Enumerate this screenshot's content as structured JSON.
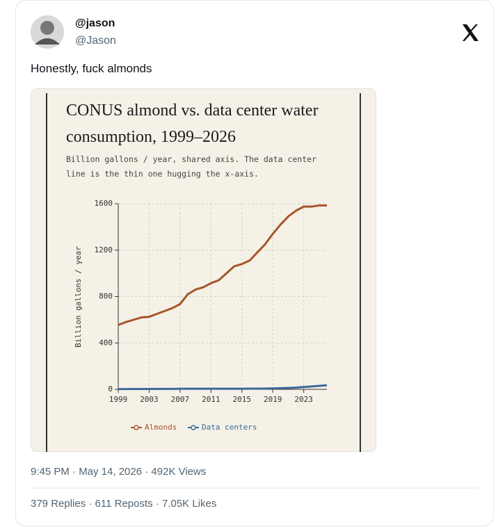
{
  "tweet": {
    "display_name": "@jason",
    "handle": "@Jason",
    "text": "Honestly, fuck almonds",
    "meta": "9:45 PM · May 14, 2026 · 492K Views",
    "stats": "379 Replies · 611 Reposts · 7.05K Likes"
  },
  "chart_data": {
    "type": "line",
    "title": "CONUS almond vs. data center water consumption, 1999–2026",
    "subtitle": "Billion gallons / year, shared axis. The data center line is the thin one hugging the x-axis.",
    "y_label": "Billion gallons / year",
    "x": [
      1999,
      2000,
      2001,
      2002,
      2003,
      2004,
      2005,
      2006,
      2007,
      2008,
      2009,
      2010,
      2011,
      2012,
      2013,
      2014,
      2015,
      2016,
      2017,
      2018,
      2019,
      2020,
      2021,
      2022,
      2023,
      2024,
      2025,
      2026
    ],
    "series": [
      {
        "name": "Almonds",
        "color": "#a5552a",
        "values": [
          555,
          580,
          600,
          620,
          625,
          650,
          675,
          700,
          735,
          820,
          860,
          880,
          915,
          940,
          1000,
          1060,
          1080,
          1110,
          1180,
          1250,
          1340,
          1420,
          1490,
          1540,
          1575,
          1575,
          1585,
          1585
        ]
      },
      {
        "name": "Data centers",
        "color": "#3a6a96",
        "values": [
          2,
          2,
          3,
          3,
          3,
          4,
          4,
          4,
          5,
          5,
          5,
          5,
          5,
          5,
          5,
          5,
          5,
          6,
          6,
          7,
          8,
          10,
          12,
          15,
          20,
          25,
          30,
          35
        ]
      }
    ],
    "xlim": [
      1999,
      2026
    ],
    "xticks": [
      1999,
      2003,
      2007,
      2011,
      2015,
      2019,
      2023
    ],
    "ylim": [
      0,
      1600
    ],
    "yticks": [
      0,
      400,
      800,
      1200,
      1600
    ],
    "grid": true
  }
}
